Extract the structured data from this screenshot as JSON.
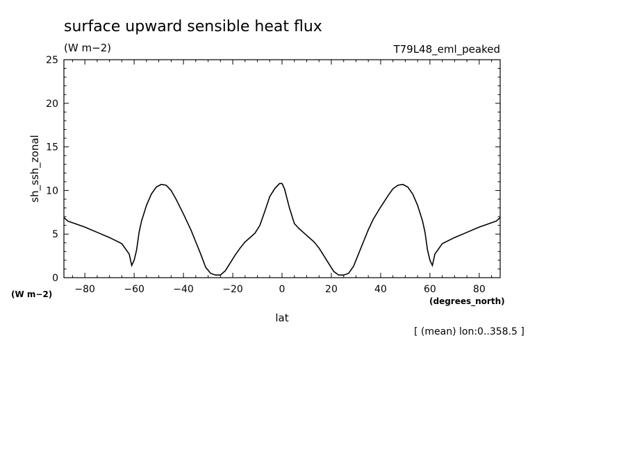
{
  "chart_data": {
    "type": "line",
    "title": "surface upward sensible heat flux",
    "units": "(W m−2)",
    "model_label": "T79L48_eml_peaked",
    "ylabel": "sh_ssh_zonal",
    "y_units_label": "(W m−2)",
    "xlabel": "lat",
    "x_units_label": "(degrees_north)",
    "footnote": "[ (mean) lon:0..358.5 ]",
    "xlim": [
      -88.5,
      88.5
    ],
    "ylim": [
      0,
      25
    ],
    "x_ticks": [
      -80,
      -60,
      -40,
      -20,
      0,
      20,
      40,
      60,
      80
    ],
    "x_tick_labels": [
      "−80",
      "−60",
      "−40",
      "−20",
      "0",
      "20",
      "40",
      "60",
      "80"
    ],
    "y_ticks": [
      0,
      5,
      10,
      15,
      20,
      25
    ],
    "y_tick_labels": [
      "0",
      "5",
      "10",
      "15",
      "20",
      "25"
    ],
    "grid": false,
    "series": [
      {
        "x": [
          -88.5,
          -87,
          -85,
          -80,
          -75,
          -70,
          -65,
          -62,
          -61,
          -60,
          -59,
          -58,
          -57,
          -55,
          -53,
          -51,
          -49,
          -47,
          -45,
          -43,
          -40,
          -37,
          -35,
          -33,
          -31,
          -29,
          -27,
          -25,
          -23,
          -21,
          -19,
          -17,
          -15,
          -13,
          -11,
          -9,
          -7,
          -5,
          -3,
          -1,
          0,
          1,
          3,
          5,
          7,
          9,
          11,
          13,
          15,
          17,
          19,
          21,
          23,
          25,
          27,
          29,
          31,
          33,
          35,
          37,
          40,
          43,
          45,
          47,
          49,
          51,
          53,
          55,
          57,
          58,
          59,
          60,
          61,
          62,
          65,
          70,
          75,
          80,
          85,
          87,
          88.5
        ],
        "y": [
          6.9,
          6.5,
          6.3,
          5.8,
          5.2,
          4.6,
          3.9,
          2.7,
          1.4,
          2.0,
          3.2,
          5.2,
          6.5,
          8.3,
          9.6,
          10.4,
          10.7,
          10.6,
          10.0,
          9.0,
          7.3,
          5.5,
          4.1,
          2.7,
          1.2,
          0.5,
          0.3,
          0.3,
          0.8,
          1.7,
          2.6,
          3.4,
          4.1,
          4.6,
          5.1,
          6.0,
          7.6,
          9.3,
          10.2,
          10.8,
          10.8,
          10.2,
          8.0,
          6.2,
          5.6,
          5.1,
          4.6,
          4.1,
          3.4,
          2.5,
          1.6,
          0.7,
          0.3,
          0.3,
          0.5,
          1.3,
          2.7,
          4.1,
          5.5,
          6.7,
          8.1,
          9.4,
          10.2,
          10.6,
          10.7,
          10.4,
          9.6,
          8.3,
          6.5,
          5.2,
          3.2,
          2.0,
          1.4,
          2.7,
          3.9,
          4.6,
          5.2,
          5.8,
          6.3,
          6.5,
          6.9
        ]
      }
    ]
  }
}
